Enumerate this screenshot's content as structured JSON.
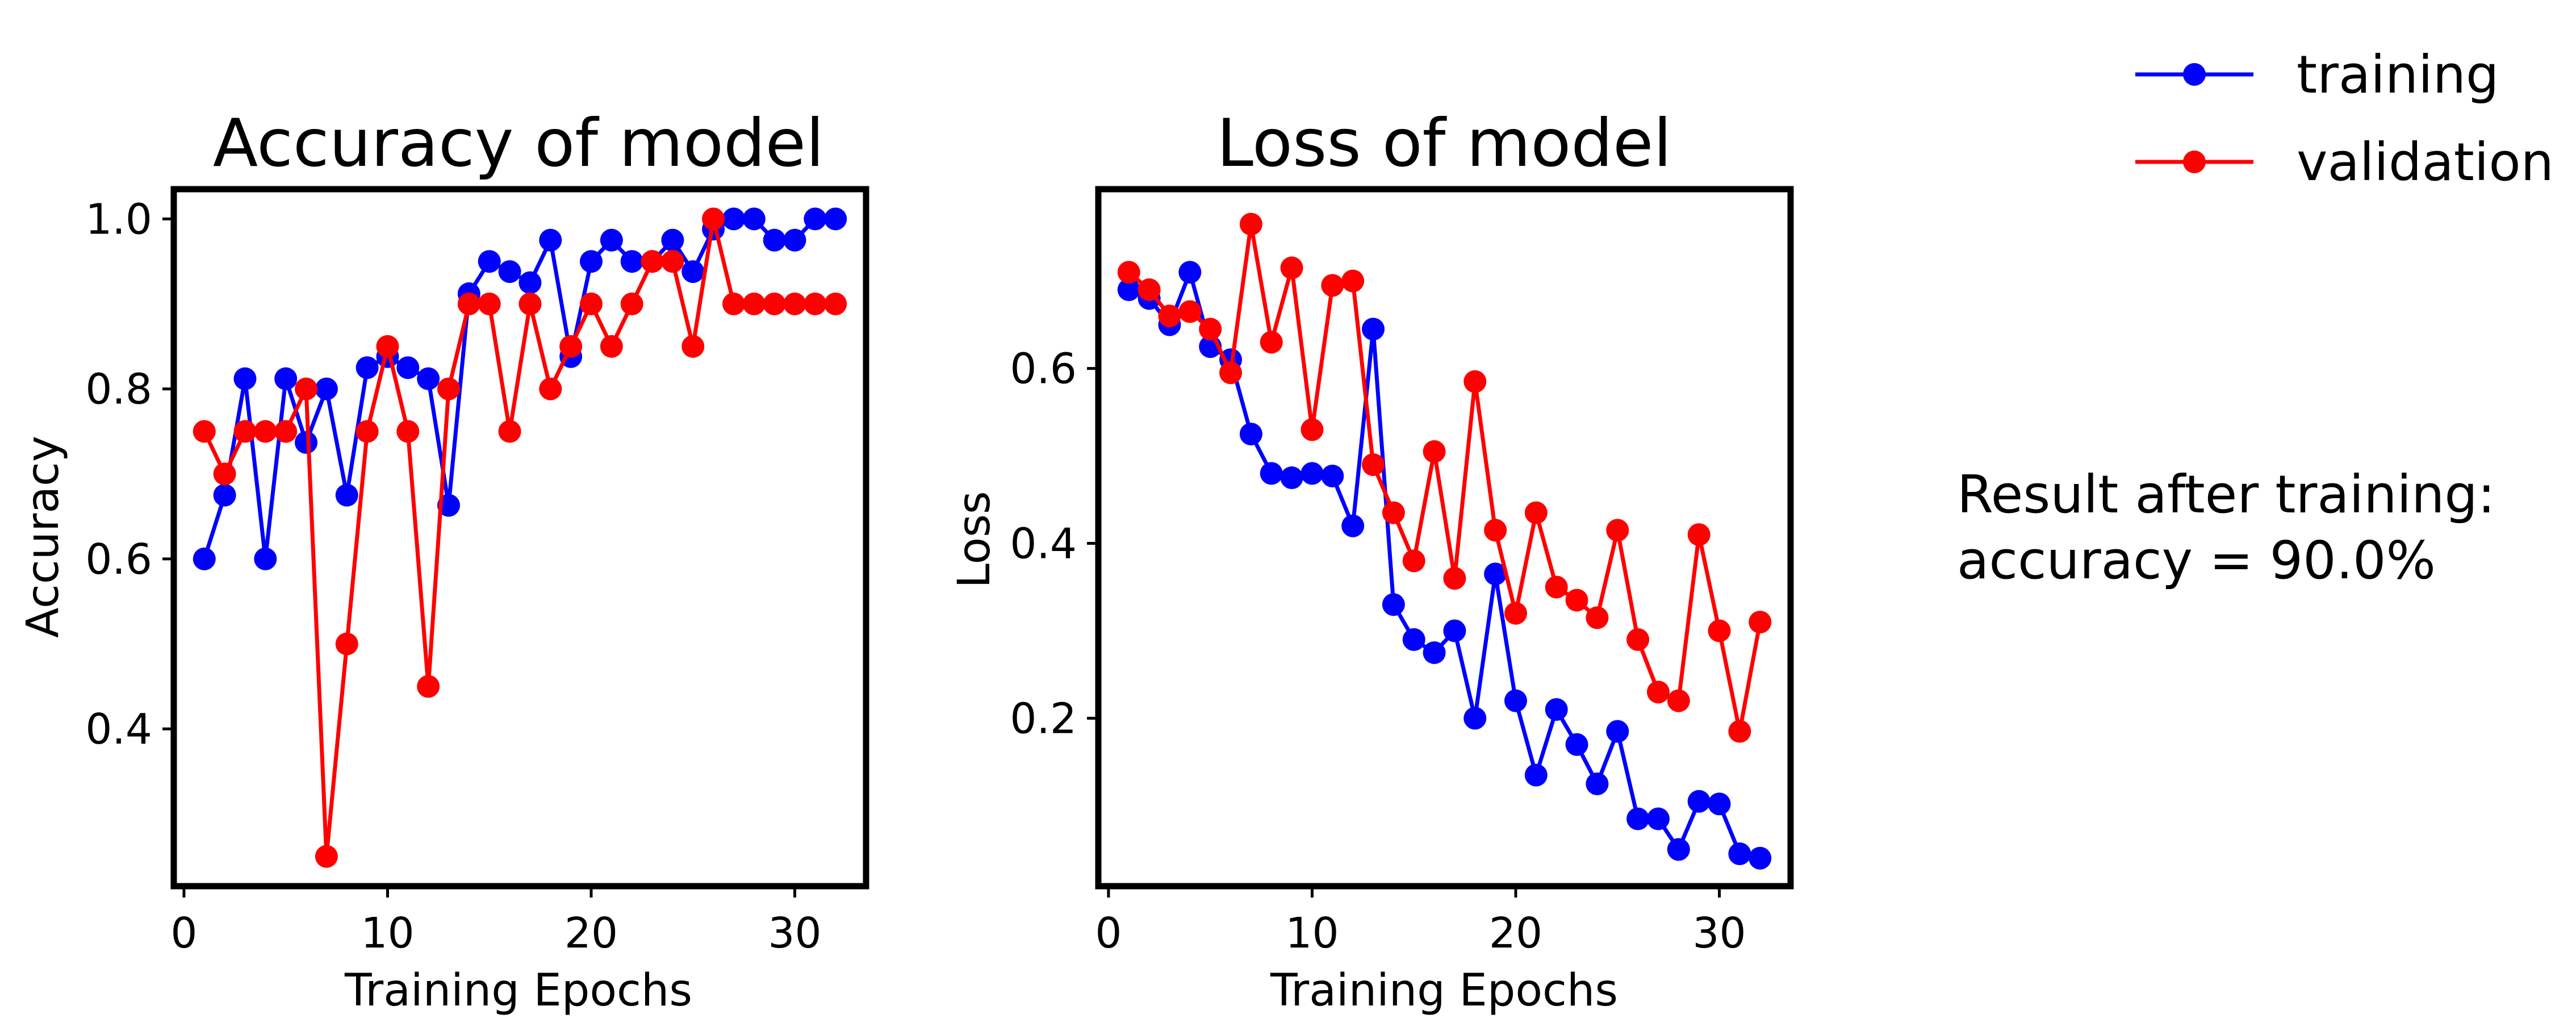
{
  "chart_data": [
    {
      "type": "line",
      "title": "Accuracy of model",
      "xlabel": "Training Epochs",
      "ylabel": "Accuracy",
      "xlim": [
        -0.5,
        33.5
      ],
      "ylim": [
        0.215,
        1.035
      ],
      "xticks": [
        0,
        10,
        20,
        30
      ],
      "yticks": [
        0.4,
        0.6,
        0.8,
        1.0
      ],
      "xtick_labels": [
        "0",
        "10",
        "20",
        "30"
      ],
      "ytick_labels": [
        "0.4",
        "0.6",
        "0.8",
        "1.0"
      ],
      "grid": false,
      "x": [
        1,
        2,
        3,
        4,
        5,
        6,
        7,
        8,
        9,
        10,
        11,
        12,
        13,
        14,
        15,
        16,
        17,
        18,
        19,
        20,
        21,
        22,
        23,
        24,
        25,
        26,
        27,
        28,
        29,
        30,
        31,
        32
      ],
      "series": [
        {
          "name": "training",
          "color": "#0000ff",
          "values": [
            0.6,
            0.675,
            0.812,
            0.6,
            0.812,
            0.737,
            0.8,
            0.675,
            0.825,
            0.838,
            0.825,
            0.812,
            0.663,
            0.912,
            0.95,
            0.938,
            0.925,
            0.975,
            0.838,
            0.95,
            0.975,
            0.95,
            0.95,
            0.975,
            0.938,
            0.988,
            1.0,
            1.0,
            0.975,
            0.975,
            1.0,
            1.0
          ]
        },
        {
          "name": "validation",
          "color": "#ff0000",
          "values": [
            0.75,
            0.7,
            0.75,
            0.75,
            0.75,
            0.8,
            0.25,
            0.5,
            0.75,
            0.85,
            0.75,
            0.45,
            0.8,
            0.9,
            0.9,
            0.75,
            0.9,
            0.8,
            0.85,
            0.9,
            0.85,
            0.9,
            0.95,
            0.95,
            0.85,
            1.0,
            0.9,
            0.9,
            0.9,
            0.9,
            0.9,
            0.9
          ]
        }
      ]
    },
    {
      "type": "line",
      "title": "Loss of model",
      "xlabel": "Training Epochs",
      "ylabel": "Loss",
      "xlim": [
        -0.5,
        33.5
      ],
      "ylim": [
        0.008,
        0.805
      ],
      "xticks": [
        0,
        10,
        20,
        30
      ],
      "yticks": [
        0.2,
        0.4,
        0.6
      ],
      "xtick_labels": [
        "0",
        "10",
        "20",
        "30"
      ],
      "ytick_labels": [
        "0.2",
        "0.4",
        "0.6"
      ],
      "grid": false,
      "x": [
        1,
        2,
        3,
        4,
        5,
        6,
        7,
        8,
        9,
        10,
        11,
        12,
        13,
        14,
        15,
        16,
        17,
        18,
        19,
        20,
        21,
        22,
        23,
        24,
        25,
        26,
        27,
        28,
        29,
        30,
        31,
        32
      ],
      "series": [
        {
          "name": "training",
          "color": "#0000ff",
          "values": [
            0.69,
            0.68,
            0.65,
            0.71,
            0.625,
            0.61,
            0.525,
            0.48,
            0.475,
            0.48,
            0.477,
            0.42,
            0.645,
            0.33,
            0.29,
            0.275,
            0.3,
            0.2,
            0.365,
            0.22,
            0.135,
            0.21,
            0.17,
            0.125,
            0.185,
            0.085,
            0.085,
            0.05,
            0.105,
            0.102,
            0.045,
            0.04
          ]
        },
        {
          "name": "validation",
          "color": "#ff0000",
          "values": [
            0.71,
            0.69,
            0.66,
            0.665,
            0.645,
            0.595,
            0.765,
            0.63,
            0.715,
            0.53,
            0.695,
            0.7,
            0.49,
            0.435,
            0.38,
            0.505,
            0.36,
            0.585,
            0.415,
            0.32,
            0.435,
            0.35,
            0.335,
            0.315,
            0.415,
            0.29,
            0.23,
            0.22,
            0.41,
            0.3,
            0.185,
            0.31
          ]
        }
      ]
    }
  ],
  "legend": {
    "placement": "top-right",
    "items": [
      {
        "label": "training",
        "color": "#0000ff"
      },
      {
        "label": "validation",
        "color": "#ff0000"
      }
    ]
  },
  "result": {
    "line1": "Result after training:",
    "line2": "accuracy = 90.0%"
  }
}
